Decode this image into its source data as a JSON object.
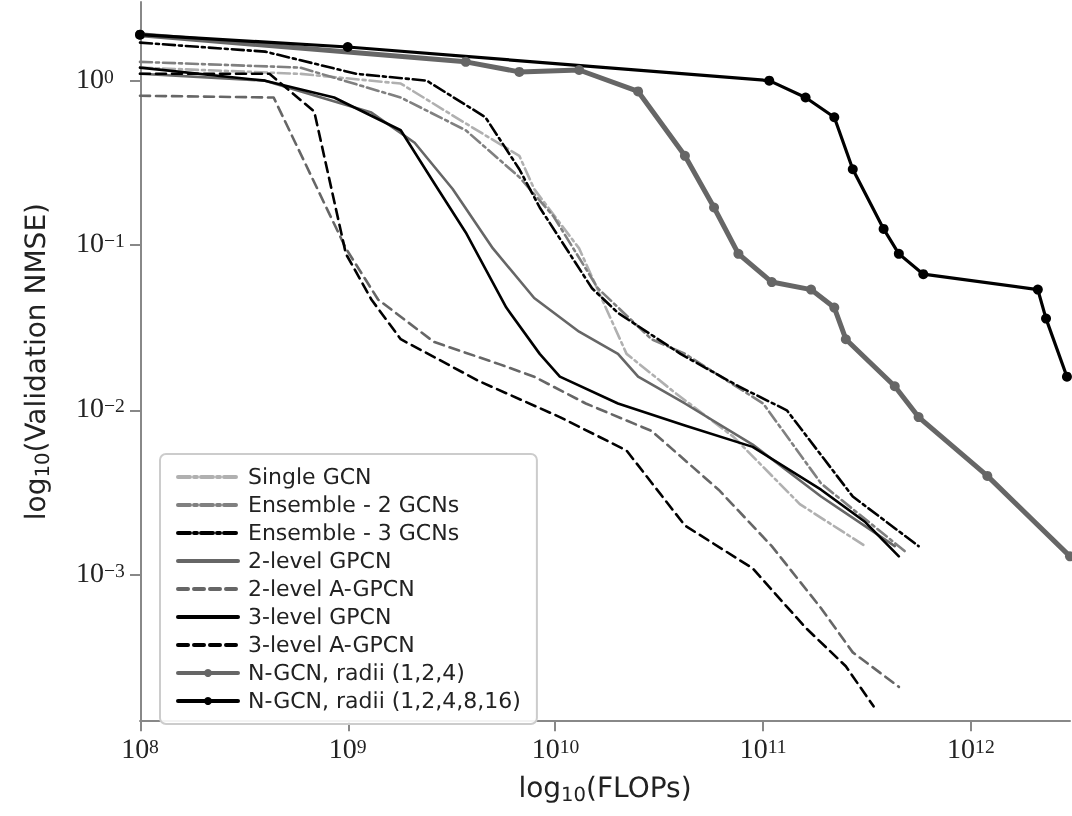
{
  "chart_data": {
    "type": "line",
    "xlabel": "log$_{10}$(FLOPs)",
    "ylabel": "log$_{10}$(Validation NMSE)",
    "log": "xy",
    "grid": false,
    "legend": "bottom left",
    "marker": "none",
    "xlim": [
      100000000.0,
      3000000000000.0
    ],
    "ylim": [
      0.00013,
      3
    ],
    "xticks": [
      {
        "value": 100000000.0,
        "label": "10$^{8}$"
      },
      {
        "value": 1000000000.0,
        "label": "10$^{9}$"
      },
      {
        "value": 10000000000.0,
        "label": "10$^{10}$"
      },
      {
        "value": 100000000000.0,
        "label": "10$^{11}$"
      },
      {
        "value": 1000000000000.0,
        "label": "10$^{12}$"
      }
    ],
    "yticks": [
      {
        "value": 0.001,
        "label": "10$^{−3}$"
      },
      {
        "value": 0.01,
        "label": "10$^{−2}$"
      },
      {
        "value": 0.1,
        "label": "10$^{−1}$"
      },
      {
        "value": 1,
        "label": "10$^{0}$"
      }
    ],
    "series": [
      {
        "name": "Single GCN",
        "color": "#b0b0b0",
        "line_style": "dashdot",
        "x": [
          100000000.0,
          590000000.0,
          1800000000.0,
          3700000000.0,
          6700000000.0,
          7900000000.0,
          13000000000.0,
          22000000000.0,
          37000000000.0,
          72000000000.0,
          150000000000.0,
          310000000000.0
        ],
        "values": [
          1.2,
          1.1,
          0.96,
          0.55,
          0.35,
          0.22,
          0.096,
          0.022,
          0.013,
          0.0069,
          0.0027,
          0.0015
        ]
      },
      {
        "name": "Ensemble - 2 GCNs",
        "color": "#808080",
        "line_style": "dashdot",
        "x": [
          100000000.0,
          590000000.0,
          1800000000.0,
          3700000000.0,
          6700000000.0,
          9800000000.0,
          16000000000.0,
          29000000000.0,
          42000000000.0,
          100000000000.0,
          190000000000.0,
          480000000000.0
        ],
        "values": [
          1.3,
          1.2,
          0.79,
          0.5,
          0.26,
          0.15,
          0.055,
          0.027,
          0.022,
          0.011,
          0.0036,
          0.0014
        ]
      },
      {
        "name": "Ensemble - 3 GCNs",
        "color": "#000000",
        "line_style": "dashdot",
        "x": [
          100000000.0,
          400000000.0,
          1100000000.0,
          2400000000.0,
          4600000000.0,
          6700000000.0,
          8400000000.0,
          15000000000.0,
          20000000000.0,
          40000000000.0,
          76000000000.0,
          130000000000.0,
          270000000000.0,
          560000000000.0
        ],
        "values": [
          1.7,
          1.5,
          1.1,
          1.0,
          0.6,
          0.29,
          0.17,
          0.055,
          0.039,
          0.022,
          0.014,
          0.01,
          0.003,
          0.0015
        ]
      },
      {
        "name": "2-level GPCN",
        "color": "#666666",
        "line_style": "solid",
        "x": [
          100000000.0,
          400000000.0,
          1300000000.0,
          2100000000.0,
          3200000000.0,
          5000000000.0,
          7900000000.0,
          13000000000.0,
          20000000000.0,
          25000000000.0,
          42000000000.0,
          89000000000.0,
          190000000000.0,
          430000000000.0
        ],
        "values": [
          1.1,
          1.0,
          0.64,
          0.42,
          0.22,
          0.096,
          0.048,
          0.03,
          0.022,
          0.016,
          0.011,
          0.0062,
          0.003,
          0.0015
        ]
      },
      {
        "name": "2-level A-GPCN",
        "color": "#666666",
        "line_style": "dashed",
        "x": [
          100000000.0,
          440000000.0,
          980000000.0,
          1400000000.0,
          2600000000.0,
          5400000000.0,
          7900000000.0,
          14000000000.0,
          29000000000.0,
          61000000000.0,
          110000000000.0,
          190000000000.0,
          270000000000.0,
          450000000000.0
        ],
        "values": [
          0.81,
          0.79,
          0.096,
          0.047,
          0.026,
          0.019,
          0.016,
          0.011,
          0.0075,
          0.0033,
          0.0015,
          0.00063,
          0.00034,
          0.00021
        ]
      },
      {
        "name": "3-level GPCN",
        "color": "#000000",
        "line_style": "solid",
        "x": [
          100000000.0,
          400000000.0,
          860000000.0,
          1800000000.0,
          2600000000.0,
          3700000000.0,
          5800000000.0,
          8400000000.0,
          10500000000.0,
          20000000000.0,
          42000000000.0,
          89000000000.0,
          190000000000.0,
          310000000000.0,
          450000000000.0
        ],
        "values": [
          1.2,
          1.0,
          0.79,
          0.5,
          0.24,
          0.12,
          0.042,
          0.022,
          0.016,
          0.011,
          0.0081,
          0.006,
          0.0033,
          0.0021,
          0.0013
        ]
      },
      {
        "name": "3-level A-GPCN",
        "color": "#000000",
        "line_style": "dashed",
        "x": [
          100000000.0,
          420000000.0,
          690000000.0,
          980000000.0,
          1300000000.0,
          1800000000.0,
          4300000000.0,
          10500000000.0,
          22000000000.0,
          42000000000.0,
          89000000000.0,
          160000000000.0,
          250000000000.0,
          340000000000.0
        ],
        "values": [
          1.1,
          1.1,
          0.65,
          0.089,
          0.047,
          0.027,
          0.015,
          0.0091,
          0.0057,
          0.002,
          0.0011,
          0.00048,
          0.00028,
          0.00016
        ]
      },
      {
        "name": "N-GCN, radii (1,2,4)",
        "color": "#666666",
        "line_style": "solid",
        "marker": "circle",
        "x": [
          100000000.0,
          3700000000.0,
          6700000000.0,
          13000000000.0,
          25000000000.0,
          42000000000.0,
          58000000000.0,
          76000000000.0,
          110000000000.0,
          170000000000.0,
          220000000000.0,
          250000000000.0,
          430000000000.0,
          560000000000.0,
          1200000000000.0,
          3000000000000.0
        ],
        "values": [
          1.9,
          1.3,
          1.13,
          1.16,
          0.86,
          0.35,
          0.17,
          0.089,
          0.06,
          0.054,
          0.042,
          0.027,
          0.014,
          0.0091,
          0.004,
          0.0013
        ]
      },
      {
        "name": "N-GCN, radii (1,2,4,8,16)",
        "color": "#000000",
        "line_style": "solid",
        "marker": "circle",
        "x": [
          100000000.0,
          1000000000.0,
          107000000000.0,
          160000000000.0,
          220000000000.0,
          270000000000.0,
          380000000000.0,
          450000000000.0,
          590000000000.0,
          2100000000000.0,
          2300000000000.0,
          2900000000000.0
        ],
        "values": [
          1.9,
          1.6,
          1.0,
          0.79,
          0.6,
          0.29,
          0.126,
          0.089,
          0.067,
          0.054,
          0.036,
          0.016
        ]
      }
    ]
  }
}
